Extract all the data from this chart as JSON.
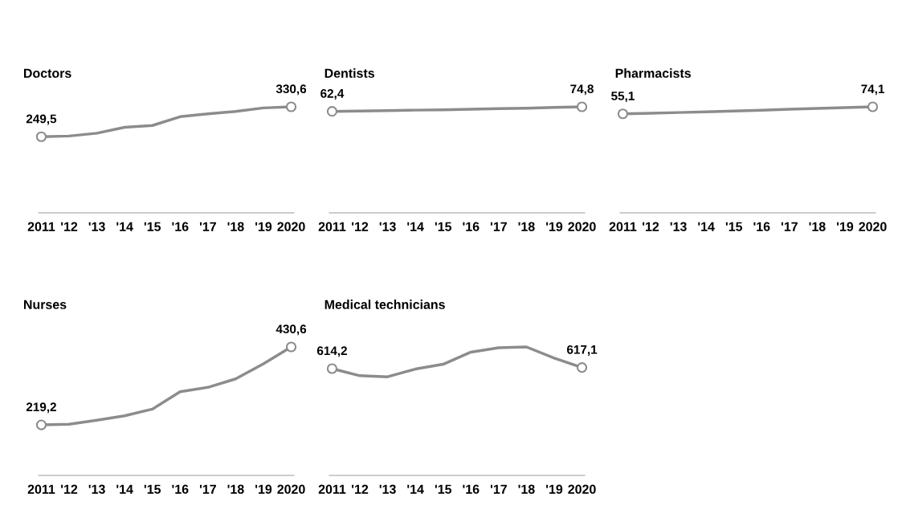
{
  "chart_data": [
    {
      "type": "line",
      "title": "Doctors",
      "categories": [
        "2011",
        "'12",
        "'13",
        "'14",
        "'15",
        "'16",
        "'17",
        "'18",
        "'19",
        "2020"
      ],
      "series": [
        {
          "color": "#8c8c8c",
          "values": [
            249.5,
            251.4,
            259.0,
            275.2,
            280.0,
            303.8,
            311.4,
            318.1,
            327.6,
            330.6
          ],
          "value_labels": [
            "249,5",
            null,
            null,
            null,
            null,
            null,
            null,
            null,
            null,
            "330,6"
          ]
        }
      ]
    },
    {
      "type": "line",
      "title": "Dentists",
      "categories": [
        "2011",
        "'12",
        "'13",
        "'14",
        "'15",
        "'16",
        "'17",
        "'18",
        "'19",
        "2020"
      ],
      "series": [
        {
          "color": "#8c8c8c",
          "values": [
            62.4,
            63.5,
            64.5,
            65.8,
            66.8,
            68.2,
            69.8,
            71.2,
            73.0,
            74.8
          ],
          "value_labels": [
            "62,4",
            null,
            null,
            null,
            null,
            null,
            null,
            null,
            null,
            "74,8"
          ]
        }
      ]
    },
    {
      "type": "line",
      "title": "Pharmacists",
      "categories": [
        "2011",
        "'12",
        "'13",
        "'14",
        "'15",
        "'16",
        "'17",
        "'18",
        "'19",
        "2020"
      ],
      "series": [
        {
          "color": "#8c8c8c",
          "values": [
            55.1,
            56.8,
            58.6,
            60.6,
            62.6,
            65.0,
            67.4,
            69.8,
            72.0,
            74.1
          ],
          "value_labels": [
            "55,1",
            null,
            null,
            null,
            null,
            null,
            null,
            null,
            null,
            "74,1"
          ]
        }
      ]
    },
    {
      "type": "line",
      "title": "Nurses",
      "categories": [
        "2011",
        "'12",
        "'13",
        "'14",
        "'15",
        "'16",
        "'17",
        "'18",
        "'19",
        "2020"
      ],
      "series": [
        {
          "color": "#8c8c8c",
          "values": [
            219.2,
            221.0,
            232.0,
            243.8,
            262.0,
            309.0,
            321.0,
            344.0,
            385.0,
            430.6
          ],
          "value_labels": [
            "219,2",
            null,
            null,
            null,
            null,
            null,
            null,
            null,
            null,
            "430,6"
          ]
        }
      ]
    },
    {
      "type": "line",
      "title": "Medical technicians",
      "categories": [
        "2011",
        "'12",
        "'13",
        "'14",
        "'15",
        "'16",
        "'17",
        "'18",
        "'19",
        "2020"
      ],
      "series": [
        {
          "color": "#8c8c8c",
          "values": [
            614.2,
            595.0,
            592.0,
            613.0,
            626.0,
            659.0,
            671.0,
            673.0,
            643.0,
            617.1
          ],
          "value_labels": [
            "614,2",
            null,
            null,
            null,
            null,
            null,
            null,
            null,
            null,
            "617,1"
          ]
        }
      ]
    }
  ]
}
